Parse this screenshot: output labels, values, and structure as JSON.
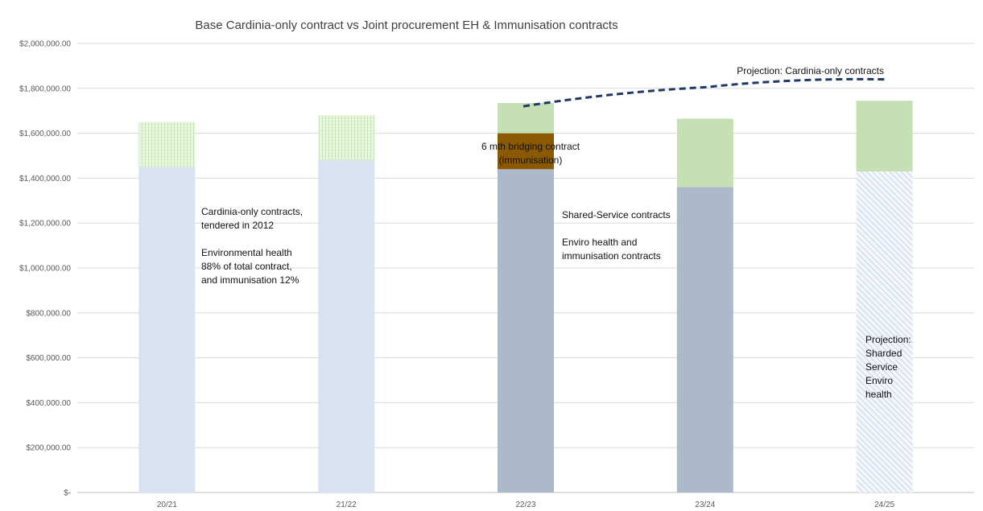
{
  "chart_data": {
    "type": "bar",
    "title": "Base Cardinia-only contract vs Joint procurement EH & Immunisation contracts",
    "xlabel": "",
    "ylabel": "",
    "categories": [
      "20/21",
      "21/22",
      "22/23",
      "23/24",
      "24/25"
    ],
    "ylim": [
      0,
      2000000
    ],
    "ytick_labels": [
      "$-",
      "$200,000.00",
      "$400,000.00",
      "$600,000.00",
      "$800,000.00",
      "$1,000,000.00",
      "$1,200,000.00",
      "$1,400,000.00",
      "$1,600,000.00",
      "$1,800,000.00",
      "$2,000,000.00"
    ],
    "grid": true,
    "legend": "none",
    "stacks": [
      {
        "category": "20/21",
        "segments": [
          {
            "value": 1450000,
            "color": "#d9e2f2",
            "pattern": "solid"
          },
          {
            "value": 200000,
            "color": "#d5e8c8",
            "pattern": "dots"
          }
        ]
      },
      {
        "category": "21/22",
        "segments": [
          {
            "value": 1480000,
            "color": "#d9e2f2",
            "pattern": "solid"
          },
          {
            "value": 200000,
            "color": "#d5e8c8",
            "pattern": "dots"
          }
        ]
      },
      {
        "category": "22/23",
        "segments": [
          {
            "value": 1440000,
            "color": "#acb9ca",
            "pattern": "solid"
          },
          {
            "value": 160000,
            "color": "#8b5a00",
            "pattern": "solid"
          },
          {
            "value": 135000,
            "color": "#c5e0b4",
            "pattern": "solid"
          }
        ]
      },
      {
        "category": "23/24",
        "segments": [
          {
            "value": 1360000,
            "color": "#acb9ca",
            "pattern": "solid"
          },
          {
            "value": 305000,
            "color": "#c5e0b4",
            "pattern": "solid"
          }
        ]
      },
      {
        "category": "24/25",
        "segments": [
          {
            "value": 1430000,
            "color": "#c9d3e6",
            "pattern": "hatch"
          },
          {
            "value": 315000,
            "color": "#c5e0b4",
            "pattern": "solid"
          }
        ]
      }
    ],
    "projection_line": {
      "name": "Projection: Cardinia-only contracts",
      "color": "#1f3864",
      "style": "dashed",
      "points": [
        {
          "x": "22/23",
          "y": 1720000
        },
        {
          "x": "23/24",
          "y": 1805000
        },
        {
          "x": "24/25",
          "y": 1840000
        }
      ]
    },
    "annotations": [
      {
        "lines": [
          "Cardinia-only contracts,",
          "tendered in 2012",
          "",
          "Environmental health",
          "88% of total contract,",
          "and immunisation 12%"
        ]
      },
      {
        "lines": [
          "6 mth bridging contract",
          "(immunisation)"
        ]
      },
      {
        "lines": [
          "Shared-Service contracts",
          "",
          "Enviro health and",
          "immunisation contracts"
        ]
      },
      {
        "lines": [
          "Projection:",
          "Sharded",
          "Service",
          "Enviro",
          "health"
        ]
      },
      {
        "lines": [
          "Projection: Cardinia-only contracts"
        ]
      }
    ]
  }
}
